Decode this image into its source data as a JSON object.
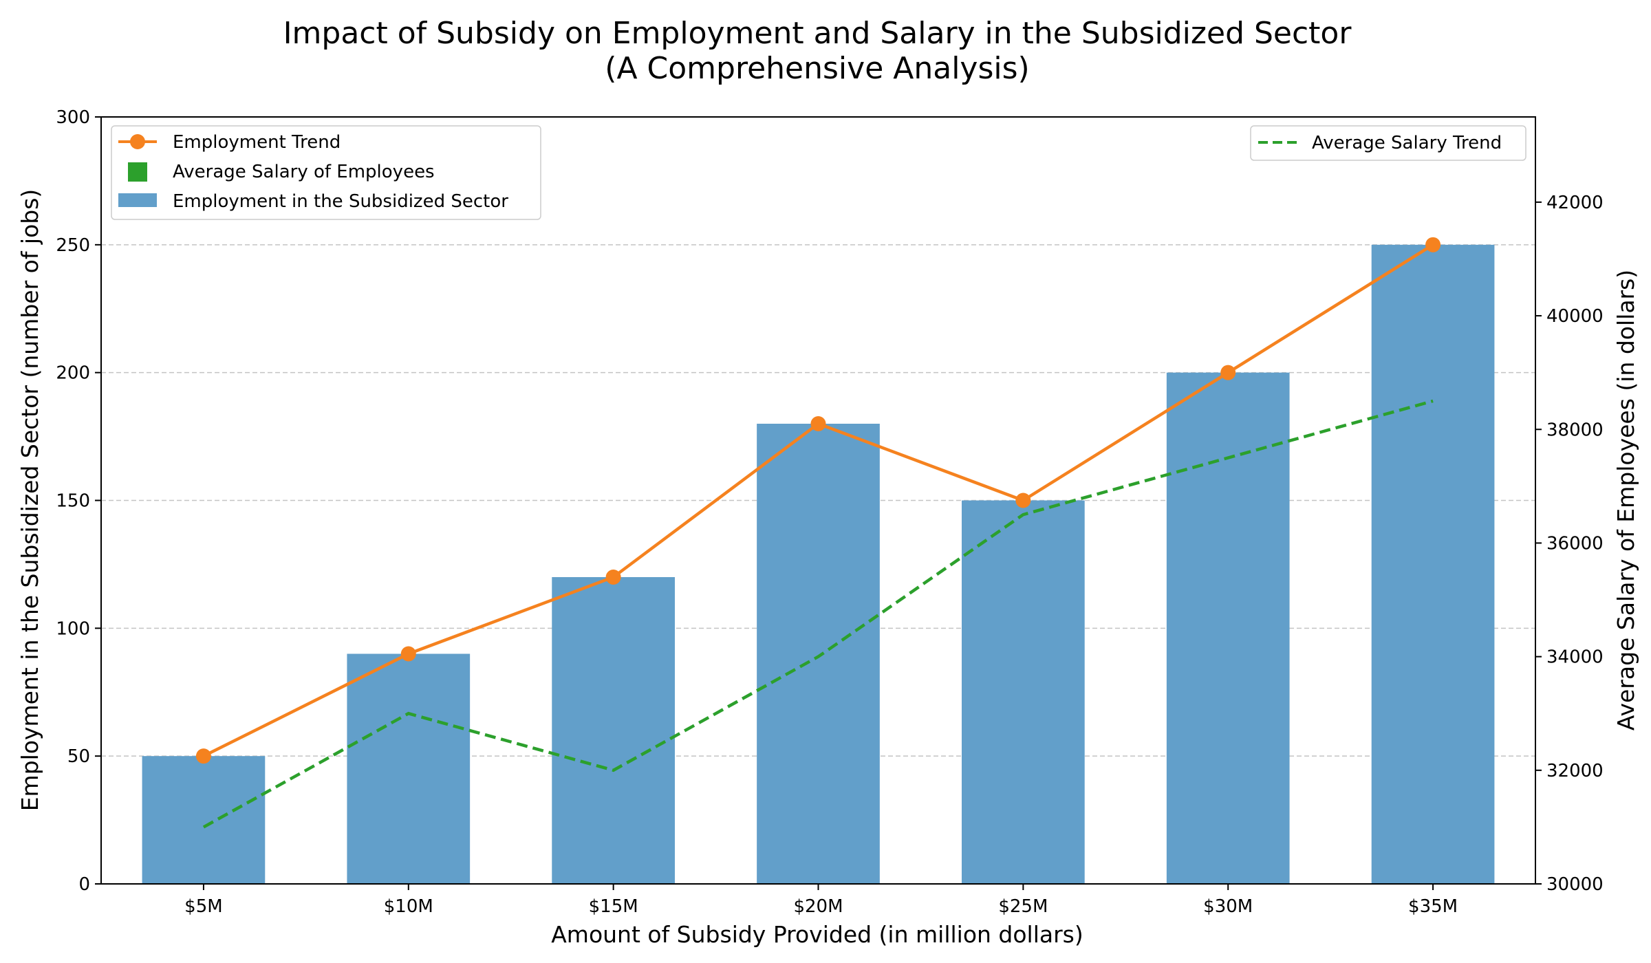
{
  "chart_data": {
    "type": "bar",
    "title": "Impact of Subsidy on Employment and Salary in the Subsidized Sector",
    "subtitle": "(A Comprehensive Analysis)",
    "xlabel": "Amount of Subsidy Provided (in million dollars)",
    "ylabel": "Employment in the Subsidized Sector (number of jobs)",
    "y2label": "Average Salary of Employees (in dollars)",
    "categories": [
      "$5M",
      "$10M",
      "$15M",
      "$20M",
      "$25M",
      "$30M",
      "$35M"
    ],
    "series": [
      {
        "name": "Employment in the Subsidized Sector",
        "kind": "bar",
        "axis": "left",
        "color": "#629fca",
        "values": [
          50,
          90,
          120,
          180,
          150,
          200,
          250
        ]
      },
      {
        "name": "Employment Trend",
        "kind": "line-marker",
        "axis": "left",
        "color": "#f5821f",
        "values": [
          50,
          90,
          120,
          180,
          150,
          200,
          250
        ]
      },
      {
        "name": "Average Salary Trend",
        "kind": "dashed-line",
        "axis": "right",
        "color": "#2ca02c",
        "values": [
          31000,
          33000,
          32000,
          34000,
          36500,
          37500,
          38500
        ]
      }
    ],
    "scatter_legend": {
      "name": "Average Salary of Employees",
      "color": "#2ca02c"
    },
    "ylim": [
      0,
      300
    ],
    "y2lim": [
      30000,
      43500
    ],
    "yticks": [
      0,
      50,
      100,
      150,
      200,
      250,
      300
    ],
    "y2ticks": [
      30000,
      32000,
      34000,
      36000,
      38000,
      40000,
      42000
    ],
    "grid": "horizontal dashed",
    "legend_left": "top-left",
    "legend_right": "top-right"
  }
}
